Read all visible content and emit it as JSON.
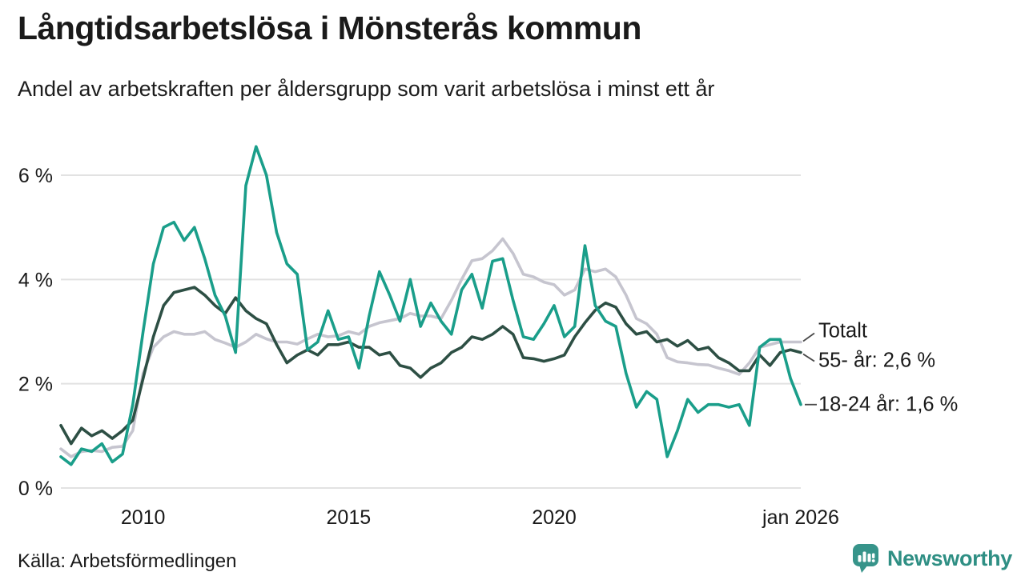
{
  "header": {
    "title": "Långtidsarbetslösa i Mönsterås kommun",
    "subtitle": "Andel av arbetskraften per åldersgrupp som varit arbetslösa i minst ett år"
  },
  "footer": {
    "source": "Källa: Arbetsförmedlingen",
    "brand": "Newsworthy",
    "brand_color": "#2f8f84"
  },
  "chart_data": {
    "type": "line",
    "x_start": 2008.0,
    "x_step": 0.25,
    "xlim": [
      2008,
      2026
    ],
    "ylim": [
      0,
      6.8
    ],
    "grid": "horizontal-only",
    "grid_color": "#e2e2e2",
    "x_ticks": [
      {
        "x": 2010,
        "label": "2010"
      },
      {
        "x": 2015,
        "label": "2015"
      },
      {
        "x": 2020,
        "label": "2020"
      },
      {
        "x": 2026,
        "label": "jan 2026"
      }
    ],
    "y_ticks": [
      {
        "value": 0,
        "label": "0 %"
      },
      {
        "value": 2,
        "label": "2 %"
      },
      {
        "value": 4,
        "label": "4 %"
      },
      {
        "value": 6,
        "label": "6 %"
      }
    ],
    "legend_position": "end-of-line-labels",
    "series": [
      {
        "name": "Totalt",
        "end_label": "Totalt",
        "color": "#c6c5cf",
        "values": [
          0.75,
          0.6,
          0.7,
          0.72,
          0.7,
          0.78,
          0.8,
          1.1,
          2.2,
          2.7,
          2.9,
          3.0,
          2.95,
          2.95,
          3.0,
          2.85,
          2.78,
          2.7,
          2.8,
          2.95,
          2.86,
          2.8,
          2.8,
          2.76,
          2.86,
          2.95,
          2.9,
          2.92,
          3.0,
          2.95,
          3.1,
          3.17,
          3.21,
          3.25,
          3.35,
          3.3,
          3.3,
          3.25,
          3.6,
          4.0,
          4.36,
          4.4,
          4.55,
          4.78,
          4.5,
          4.1,
          4.05,
          3.95,
          3.9,
          3.7,
          3.8,
          4.2,
          4.15,
          4.2,
          4.05,
          3.7,
          3.25,
          3.15,
          2.95,
          2.5,
          2.42,
          2.4,
          2.37,
          2.36,
          2.3,
          2.25,
          2.18,
          2.4,
          2.7,
          2.75,
          2.8,
          2.8,
          2.8
        ]
      },
      {
        "name": "55- år",
        "end_label": "55- år: 2,6 %",
        "color": "#2d4f44",
        "values": [
          1.2,
          0.85,
          1.15,
          1.0,
          1.1,
          0.95,
          1.1,
          1.3,
          2.1,
          2.9,
          3.5,
          3.75,
          3.8,
          3.85,
          3.7,
          3.5,
          3.35,
          3.65,
          3.4,
          3.25,
          3.15,
          2.75,
          2.4,
          2.55,
          2.65,
          2.55,
          2.75,
          2.75,
          2.8,
          2.7,
          2.7,
          2.55,
          2.6,
          2.35,
          2.3,
          2.12,
          2.3,
          2.4,
          2.6,
          2.7,
          2.9,
          2.85,
          2.95,
          3.1,
          2.95,
          2.5,
          2.48,
          2.43,
          2.48,
          2.55,
          2.9,
          3.17,
          3.41,
          3.55,
          3.47,
          3.15,
          2.95,
          3.0,
          2.8,
          2.85,
          2.72,
          2.83,
          2.65,
          2.7,
          2.5,
          2.4,
          2.25,
          2.25,
          2.55,
          2.35,
          2.6,
          2.65,
          2.6
        ]
      },
      {
        "name": "18-24 år",
        "end_label": "18-24 år: 1,6 %",
        "color": "#1a9e8a",
        "values": [
          0.6,
          0.45,
          0.75,
          0.7,
          0.85,
          0.5,
          0.65,
          1.6,
          3.0,
          4.3,
          5.0,
          5.1,
          4.75,
          5.0,
          4.4,
          3.7,
          3.3,
          2.6,
          5.8,
          6.55,
          6.0,
          4.9,
          4.3,
          4.1,
          2.65,
          2.8,
          3.4,
          2.85,
          2.9,
          2.3,
          3.3,
          4.15,
          3.7,
          3.2,
          4.0,
          3.1,
          3.55,
          3.2,
          2.95,
          3.8,
          4.1,
          3.45,
          4.35,
          4.4,
          3.6,
          2.9,
          2.85,
          3.15,
          3.5,
          2.9,
          3.1,
          4.65,
          3.5,
          3.2,
          3.1,
          2.2,
          1.55,
          1.85,
          1.7,
          0.6,
          1.1,
          1.7,
          1.45,
          1.6,
          1.6,
          1.55,
          1.6,
          1.2,
          2.7,
          2.85,
          2.85,
          2.1,
          1.6
        ]
      }
    ]
  }
}
